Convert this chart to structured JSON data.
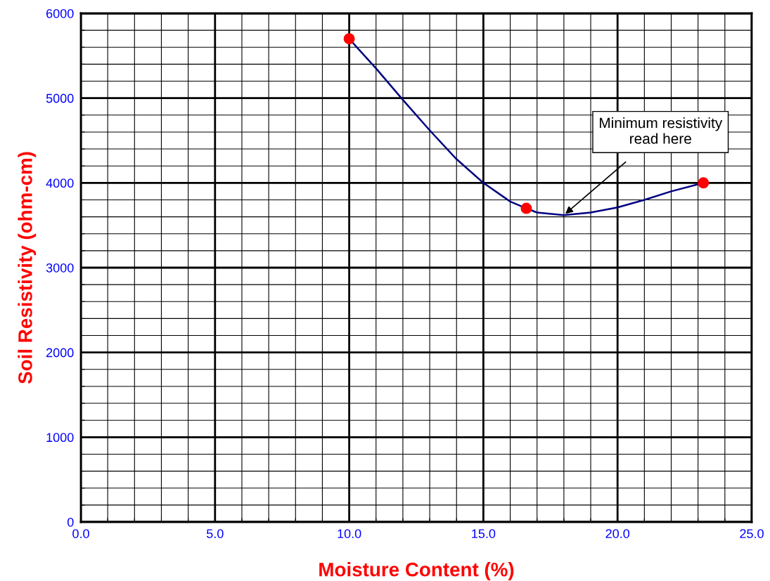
{
  "chart_data": {
    "type": "line",
    "xlabel": "Moisture Content (%)",
    "ylabel": "Soil Resistivity (ohm-cm)",
    "xlim": [
      0,
      25
    ],
    "ylim": [
      0,
      6000
    ],
    "xticks": [
      {
        "value": 0,
        "label": "0.0"
      },
      {
        "value": 1,
        "label": null
      },
      {
        "value": 2,
        "label": null
      },
      {
        "value": 3,
        "label": null
      },
      {
        "value": 4,
        "label": null
      },
      {
        "value": 5,
        "label": "5.0"
      },
      {
        "value": 6,
        "label": null
      },
      {
        "value": 7,
        "label": null
      },
      {
        "value": 8,
        "label": null
      },
      {
        "value": 9,
        "label": null
      },
      {
        "value": 10,
        "label": "10.0"
      },
      {
        "value": 11,
        "label": null
      },
      {
        "value": 12,
        "label": null
      },
      {
        "value": 13,
        "label": null
      },
      {
        "value": 14,
        "label": null
      },
      {
        "value": 15,
        "label": "15.0"
      },
      {
        "value": 16,
        "label": null
      },
      {
        "value": 17,
        "label": null
      },
      {
        "value": 18,
        "label": null
      },
      {
        "value": 19,
        "label": null
      },
      {
        "value": 20,
        "label": "20.0"
      },
      {
        "value": 21,
        "label": null
      },
      {
        "value": 22,
        "label": null
      },
      {
        "value": 23,
        "label": null
      },
      {
        "value": 24,
        "label": null
      },
      {
        "value": 25,
        "label": "25.0"
      }
    ],
    "yticks": [
      0,
      {
        "value": 200,
        "label": null
      },
      {
        "value": 400,
        "label": null
      },
      {
        "value": 600,
        "label": null
      },
      {
        "value": 800,
        "label": null
      },
      1000,
      {
        "value": 1200,
        "label": null
      },
      {
        "value": 1400,
        "label": null
      },
      {
        "value": 1600,
        "label": null
      },
      {
        "value": 1800,
        "label": null
      },
      2000,
      {
        "value": 2200,
        "label": null
      },
      {
        "value": 2400,
        "label": null
      },
      {
        "value": 2600,
        "label": null
      },
      {
        "value": 2800,
        "label": null
      },
      3000,
      {
        "value": 3200,
        "label": null
      },
      {
        "value": 3400,
        "label": null
      },
      {
        "value": 3600,
        "label": null
      },
      {
        "value": 3800,
        "label": null
      },
      4000,
      {
        "value": 4200,
        "label": null
      },
      {
        "value": 4400,
        "label": null
      },
      {
        "value": 4600,
        "label": null
      },
      {
        "value": 4800,
        "label": null
      },
      5000,
      {
        "value": 5200,
        "label": null
      },
      {
        "value": 5400,
        "label": null
      },
      {
        "value": 5600,
        "label": null
      },
      {
        "value": 5800,
        "label": null
      },
      6000
    ],
    "grid": true,
    "series": [
      {
        "color": "#000080",
        "marker": "none",
        "x": [
          10,
          11,
          12,
          13,
          14,
          15,
          16,
          16.6,
          17,
          18,
          19,
          20,
          21,
          22,
          23.2
        ],
        "values": [
          5700,
          5350,
          4980,
          4620,
          4280,
          4000,
          3780,
          3700,
          3650,
          3620,
          3650,
          3710,
          3800,
          3900,
          4000
        ]
      },
      {
        "type": "scatter",
        "color": "#ff0000",
        "marker": "circle",
        "x": [
          10,
          16.6,
          23.2
        ],
        "values": [
          5700,
          3700,
          4000
        ]
      }
    ],
    "annotations": [
      {
        "text": "Minimum resistivity\nread here",
        "x": 18,
        "y": 3620
      }
    ]
  }
}
